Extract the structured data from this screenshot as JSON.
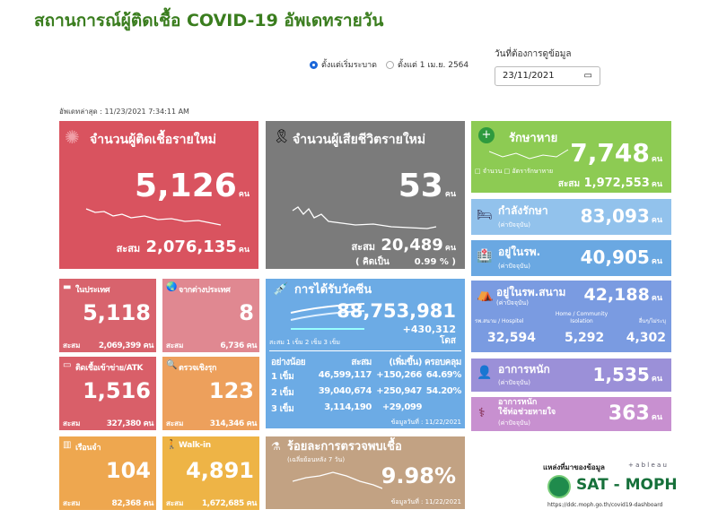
{
  "title": "สถานการณ์ผู้ติดเชื้อ COVID-19 อัพเดทรายวัน",
  "controls": {
    "radio1": "ตั้งแต่เริ่มระบาด",
    "radio2": "ตั้งแต่ 1 เม.ย. 2564",
    "date_label": "วันที่ต้องการดูข้อมูล",
    "date_value": "23/11/2021"
  },
  "updated": "อัพเดทล่าสุด : 11/23/2021 7:34:11 AM",
  "unit": "คน",
  "acc": "สะสม",
  "new_cases": {
    "title": "จำนวนผู้ติดเชื้อรายใหม่",
    "value": "5,126",
    "total": "2,076,135"
  },
  "deaths": {
    "title": "จำนวนผู้เสียชีวิตรายใหม่",
    "value": "53",
    "total": "20,489",
    "pct_label": "( คิดเป็น",
    "pct": "0.99 % )"
  },
  "recovered": {
    "title": "รักษาหาย",
    "value": "7,748",
    "legend1": "จำนวน",
    "legend2": "อัตรารักษาหาย",
    "total": "1,972,553"
  },
  "treating": {
    "title": "กำลังรักษา",
    "sub": "(ค่าปัจจุบัน)",
    "value": "83,093"
  },
  "hospital": {
    "title": "อยู่ในรพ.",
    "sub": "(ค่าปัจจุบัน)",
    "value": "40,905"
  },
  "field": {
    "title": "อยู่ในรพ.สนาม",
    "sub": "(ค่าปัจจุบัน)",
    "value": "42,188",
    "c1_label": "รพ.สนาม / Hospitel",
    "c1": "32,594",
    "c2_label": "Home / Community Isolation",
    "c2": "5,292",
    "c3_label": "อื่นๆ/ไม่ระบุ",
    "c3": "4,302"
  },
  "severe": {
    "title": "อาการหนัก",
    "sub": "(ค่าปัจจุบัน)",
    "value": "1,535"
  },
  "ventilator": {
    "title1": "อาการหนัก",
    "title2": "ใช้ท่อช่วยหายใจ",
    "sub": "(ค่าปัจจุบัน)",
    "value": "363"
  },
  "small": [
    {
      "title": "ในประเทศ",
      "value": "5,118",
      "total": "2,069,399",
      "color": "#d8636d"
    },
    {
      "title": "จากต่างประเทศ",
      "value": "8",
      "total": "6,736",
      "color": "#e08891"
    },
    {
      "title": "ติดเชื้อเข้าข่าย/ATK",
      "value": "1,516",
      "total": "327,380",
      "color": "#d95f69"
    },
    {
      "title": "ตรวจเชิงรุก",
      "value": "123",
      "total": "314,346",
      "color": "#eda05c"
    },
    {
      "title": "เรือนจำ",
      "value": "104",
      "total": "82,368",
      "color": "#eea74f"
    },
    {
      "title": "Walk-in",
      "value": "4,891",
      "total": "1,672,685",
      "color": "#eeb446"
    }
  ],
  "vaccine": {
    "title": "การได้รับวัคซีน",
    "value": "88,753,981",
    "delta": "+430,312",
    "unit": "โดส",
    "legend": "สะสม  1 เข็ม  2 เข็ม  3 เข็ม",
    "headers": [
      "อย่างน้อย",
      "สะสม",
      "(เพิ่มขึ้น)",
      "ครอบคลุม"
    ],
    "rows": [
      [
        "1 เข็ม",
        "46,599,117",
        "+150,266",
        "64.69%"
      ],
      [
        "2 เข็ม",
        "39,040,674",
        "+250,947",
        "54.20%"
      ],
      [
        "3 เข็ม",
        "3,114,190",
        "+29,099",
        ""
      ]
    ],
    "date": "ข้อมูลวันที่ : 11/22/2021"
  },
  "positivity": {
    "title": "ร้อยละการตรวจพบเชื้อ",
    "sub": "(เฉลี่ยย้อนหลัง 7 วัน)",
    "value": "9.98%",
    "date": "ข้อมูลวันที่ : 11/22/2021"
  },
  "source": {
    "label": "แหล่งที่มาของข้อมูล",
    "tableau": "+ a b l e a u",
    "brand": "SAT - MOPH",
    "url": "https://ddc.moph.go.th/covid19-dashboard"
  }
}
